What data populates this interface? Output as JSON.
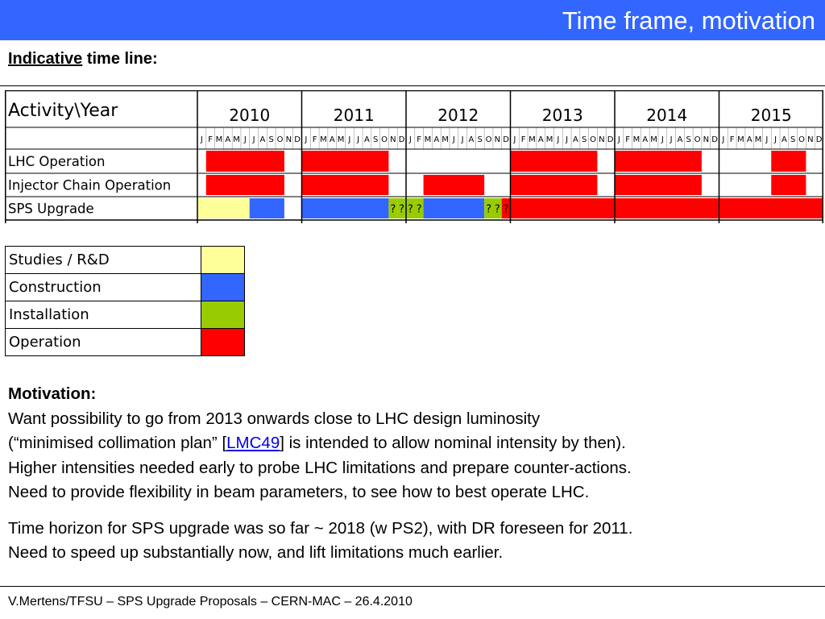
{
  "header": {
    "title": "Time frame, motivation"
  },
  "subtitle": {
    "emphasis": "Indicative",
    "rest": " time line:"
  },
  "gantt": {
    "corner_label": "Activity\\Year",
    "years": [
      "2010",
      "2011",
      "2012",
      "2013",
      "2014",
      "2015"
    ],
    "months": [
      "J",
      "F",
      "M",
      "A",
      "M",
      "J",
      "J",
      "A",
      "S",
      "O",
      "N",
      "D"
    ],
    "rows": [
      {
        "label": "LHC Operation",
        "bars": [
          {
            "year": "2010",
            "start_month": 2,
            "end_month": 10,
            "phase": "Operation"
          },
          {
            "year": "2011",
            "start_month": 1,
            "end_month": 10,
            "phase": "Operation"
          },
          {
            "year": "2013",
            "start_month": 1,
            "end_month": 10,
            "phase": "Operation"
          },
          {
            "year": "2014",
            "start_month": 1,
            "end_month": 10,
            "phase": "Operation"
          },
          {
            "year": "2015",
            "start_month": 7,
            "end_month": 10,
            "phase": "Operation"
          }
        ]
      },
      {
        "label": "Injector Chain Operation",
        "bars": [
          {
            "year": "2010",
            "start_month": 2,
            "end_month": 10,
            "phase": "Operation"
          },
          {
            "year": "2011",
            "start_month": 1,
            "end_month": 10,
            "phase": "Operation"
          },
          {
            "year": "2012",
            "start_month": 3,
            "end_month": 9,
            "phase": "Operation"
          },
          {
            "year": "2013",
            "start_month": 1,
            "end_month": 10,
            "phase": "Operation"
          },
          {
            "year": "2014",
            "start_month": 1,
            "end_month": 10,
            "phase": "Operation"
          },
          {
            "year": "2015",
            "start_month": 7,
            "end_month": 10,
            "phase": "Operation"
          }
        ]
      },
      {
        "label": "SPS Upgrade",
        "bars": [
          {
            "year": "2010",
            "start_month": 1,
            "end_month": 6,
            "phase": "Studies / R&D"
          },
          {
            "year": "2010",
            "start_month": 7,
            "end_month": 10,
            "phase": "Construction"
          },
          {
            "year": "2011",
            "start_month": 1,
            "end_month": 10,
            "phase": "Construction"
          },
          {
            "year": "2011",
            "start_month": 11,
            "end_month": 11,
            "phase": "Installation"
          },
          {
            "year": "2011",
            "start_month": 12,
            "end_month": 12,
            "phase": "Installation"
          },
          {
            "year": "2012",
            "start_month": 1,
            "end_month": 2,
            "phase": "Installation"
          },
          {
            "year": "2012",
            "start_month": 3,
            "end_month": 9,
            "phase": "Construction"
          },
          {
            "year": "2012",
            "start_month": 10,
            "end_month": 11,
            "phase": "Installation"
          },
          {
            "year": "2012",
            "start_month": 12,
            "end_month": 12,
            "phase": "Operation"
          },
          {
            "year": "2013",
            "start_month": 1,
            "end_month": 12,
            "phase": "Operation"
          },
          {
            "year": "2014",
            "start_month": 1,
            "end_month": 12,
            "phase": "Operation"
          },
          {
            "year": "2015",
            "start_month": 1,
            "end_month": 12,
            "phase": "Operation"
          }
        ],
        "marks": [
          {
            "year": "2011",
            "month": 11,
            "text": "?"
          },
          {
            "year": "2011",
            "month": 12,
            "text": "?"
          },
          {
            "year": "2012",
            "month": 1,
            "text": "?"
          },
          {
            "year": "2012",
            "month": 2,
            "text": "?"
          },
          {
            "year": "2012",
            "month": 10,
            "text": "?"
          },
          {
            "year": "2012",
            "month": 11,
            "text": "?"
          },
          {
            "year": "2012",
            "month": 12,
            "text": "?"
          }
        ]
      }
    ]
  },
  "legend": {
    "items": [
      {
        "label": "Studies / R&D",
        "color": "#ffff99"
      },
      {
        "label": "Construction",
        "color": "#3366ff"
      },
      {
        "label": "Installation",
        "color": "#99cc00"
      },
      {
        "label": "Operation",
        "color": "#ff0000"
      }
    ]
  },
  "motivation": {
    "heading": "Motivation:",
    "line1": "Want possibility to go from 2013 onwards close to LHC design luminosity",
    "line2_before": "(“minimised collimation plan” [",
    "line2_link": "LMC49",
    "line2_after": "] is intended to allow nominal intensity by then).",
    "line3": "Higher intensities needed early to probe LHC limitations and prepare counter-actions.",
    "line4": "Need to provide flexibility in beam parameters, to see how to best operate LHC.",
    "line5": "Time horizon for SPS upgrade was so far ~ 2018 (w PS2), with DR foreseen for 2011.",
    "line6": "Need to speed up substantially now, and lift limitations much earlier."
  },
  "footer": {
    "text": "V.Mertens/TFSU – SPS Upgrade Proposals – CERN-MAC – 26.4.2010"
  }
}
